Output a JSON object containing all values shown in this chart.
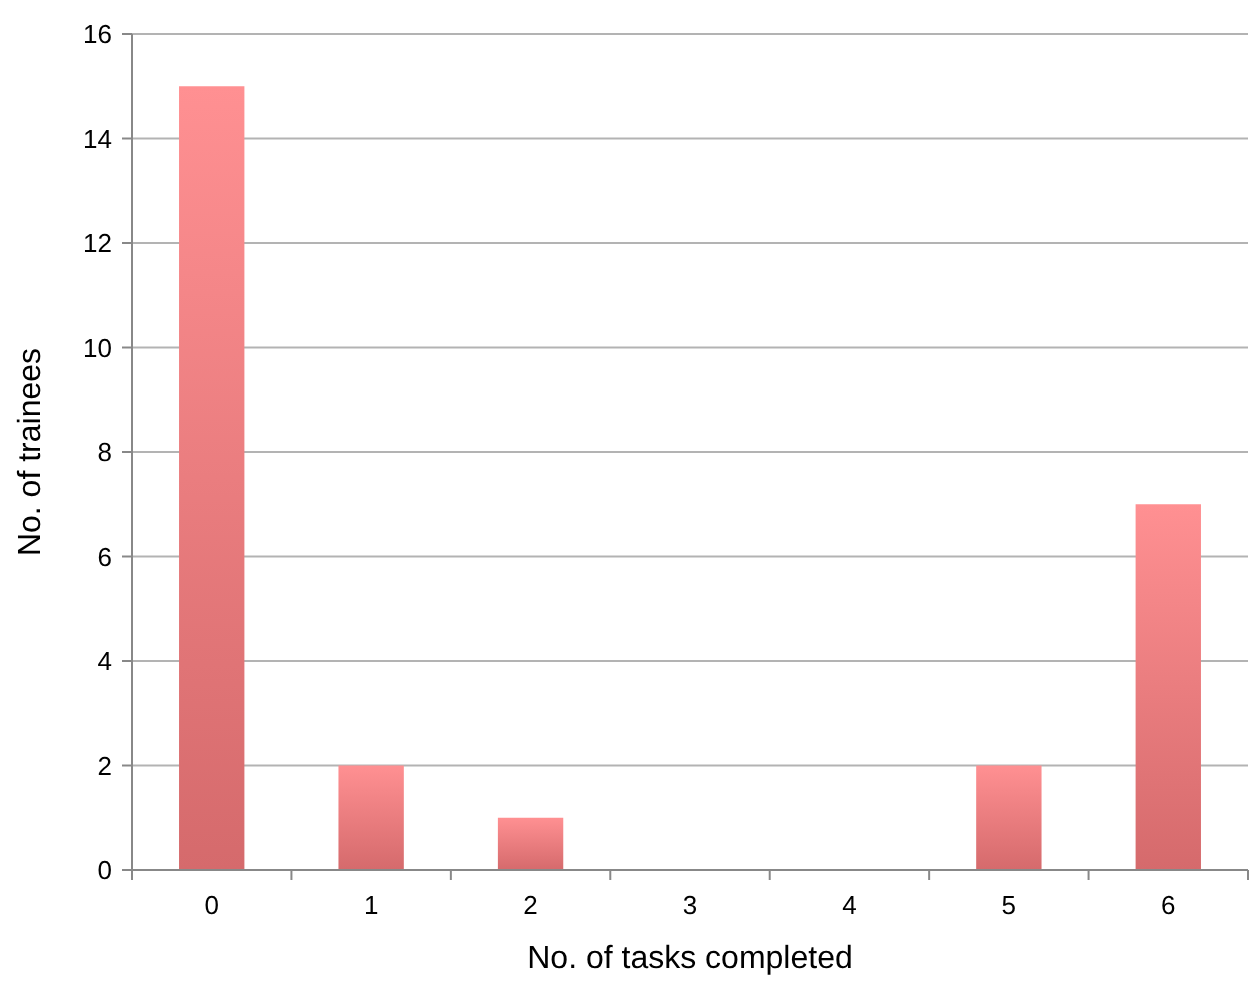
{
  "chart_data": {
    "type": "bar",
    "xlabel": "No. of tasks completed",
    "ylabel": "No. of trainees",
    "categories": [
      "0",
      "1",
      "2",
      "3",
      "4",
      "5",
      "6"
    ],
    "values": [
      15,
      2,
      1,
      0,
      0,
      2,
      7
    ],
    "color": "#e97476",
    "ylim": [
      0,
      16
    ],
    "yticks": [
      0,
      2,
      4,
      6,
      8,
      10,
      12,
      14,
      16
    ],
    "grid": "y"
  }
}
